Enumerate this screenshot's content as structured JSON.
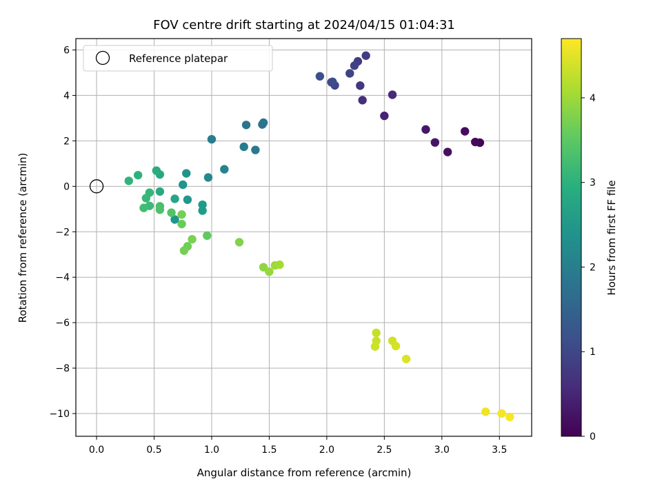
{
  "chart_data": {
    "type": "scatter",
    "title": "FOV centre drift starting at 2024/04/15 01:04:31",
    "xlabel": "Angular distance from reference (arcmin)",
    "ylabel": "Rotation from reference (arcmin)",
    "xlim": [
      -0.18,
      3.78
    ],
    "ylim": [
      -11.0,
      6.5
    ],
    "xticks": [
      0.0,
      0.5,
      1.0,
      1.5,
      2.0,
      2.5,
      3.0,
      3.5
    ],
    "xtick_labels": [
      "0.0",
      "0.5",
      "1.0",
      "1.5",
      "2.0",
      "2.5",
      "3.0",
      "3.5"
    ],
    "yticks": [
      -10,
      -8,
      -6,
      -4,
      -2,
      0,
      2,
      4,
      6
    ],
    "ytick_labels": [
      "−10",
      "−8",
      "−6",
      "−4",
      "−2",
      "0",
      "2",
      "4",
      "6"
    ],
    "grid": true,
    "legend": {
      "placement": "top-left",
      "entries": [
        "Reference platepar"
      ]
    },
    "reference_point": {
      "x": 0.0,
      "y": 0.0
    },
    "colorbar": {
      "label": "Hours from first FF file",
      "colormap": "viridis",
      "range": [
        0,
        4.7
      ],
      "ticks": [
        0,
        1,
        2,
        3,
        4
      ],
      "tick_labels": [
        "0",
        "1",
        "2",
        "3",
        "4"
      ]
    },
    "points": [
      {
        "x": 3.33,
        "y": 1.92,
        "c": 0.05
      },
      {
        "x": 3.29,
        "y": 1.95,
        "c": 0.1
      },
      {
        "x": 3.2,
        "y": 2.42,
        "c": 0.15
      },
      {
        "x": 3.05,
        "y": 1.51,
        "c": 0.2
      },
      {
        "x": 2.94,
        "y": 1.93,
        "c": 0.25
      },
      {
        "x": 2.86,
        "y": 2.5,
        "c": 0.3
      },
      {
        "x": 2.5,
        "y": 3.1,
        "c": 0.45
      },
      {
        "x": 2.57,
        "y": 4.03,
        "c": 0.55
      },
      {
        "x": 2.31,
        "y": 3.79,
        "c": 0.65
      },
      {
        "x": 2.29,
        "y": 4.43,
        "c": 0.75
      },
      {
        "x": 2.34,
        "y": 5.75,
        "c": 0.8
      },
      {
        "x": 2.27,
        "y": 5.5,
        "c": 0.85
      },
      {
        "x": 2.24,
        "y": 5.31,
        "c": 0.9
      },
      {
        "x": 2.2,
        "y": 4.97,
        "c": 0.95
      },
      {
        "x": 2.07,
        "y": 4.44,
        "c": 1.0
      },
      {
        "x": 2.05,
        "y": 4.6,
        "c": 1.05
      },
      {
        "x": 2.04,
        "y": 4.58,
        "c": 1.1
      },
      {
        "x": 1.94,
        "y": 4.84,
        "c": 1.15
      },
      {
        "x": 1.45,
        "y": 2.8,
        "c": 1.75
      },
      {
        "x": 1.44,
        "y": 2.72,
        "c": 1.8
      },
      {
        "x": 1.3,
        "y": 2.7,
        "c": 1.85
      },
      {
        "x": 1.38,
        "y": 1.6,
        "c": 1.9
      },
      {
        "x": 1.28,
        "y": 1.74,
        "c": 1.95
      },
      {
        "x": 1.0,
        "y": 2.07,
        "c": 2.0
      },
      {
        "x": 1.11,
        "y": 0.75,
        "c": 2.1
      },
      {
        "x": 0.97,
        "y": 0.39,
        "c": 2.2
      },
      {
        "x": 0.78,
        "y": 0.57,
        "c": 2.4
      },
      {
        "x": 0.75,
        "y": 0.07,
        "c": 2.45
      },
      {
        "x": 0.79,
        "y": -0.59,
        "c": 2.5
      },
      {
        "x": 0.92,
        "y": -0.81,
        "c": 2.55
      },
      {
        "x": 0.92,
        "y": -1.07,
        "c": 2.6
      },
      {
        "x": 0.68,
        "y": -1.46,
        "c": 2.45
      },
      {
        "x": 0.68,
        "y": -0.55,
        "c": 2.75
      },
      {
        "x": 0.55,
        "y": 0.52,
        "c": 2.8
      },
      {
        "x": 0.55,
        "y": -0.23,
        "c": 2.85
      },
      {
        "x": 0.52,
        "y": 0.69,
        "c": 2.9
      },
      {
        "x": 0.36,
        "y": 0.49,
        "c": 3.0
      },
      {
        "x": 0.28,
        "y": 0.24,
        "c": 3.05
      },
      {
        "x": 0.46,
        "y": -0.28,
        "c": 3.1
      },
      {
        "x": 0.43,
        "y": -0.52,
        "c": 3.15
      },
      {
        "x": 0.46,
        "y": -0.86,
        "c": 3.2
      },
      {
        "x": 0.41,
        "y": -0.95,
        "c": 3.25
      },
      {
        "x": 0.55,
        "y": -0.88,
        "c": 3.3
      },
      {
        "x": 0.55,
        "y": -1.03,
        "c": 3.35
      },
      {
        "x": 0.65,
        "y": -1.16,
        "c": 3.4
      },
      {
        "x": 0.74,
        "y": -1.66,
        "c": 3.6
      },
      {
        "x": 0.74,
        "y": -1.24,
        "c": 3.7
      },
      {
        "x": 0.96,
        "y": -2.17,
        "c": 3.55
      },
      {
        "x": 0.83,
        "y": -2.33,
        "c": 3.75
      },
      {
        "x": 0.79,
        "y": -2.64,
        "c": 3.65
      },
      {
        "x": 0.76,
        "y": -2.83,
        "c": 3.7
      },
      {
        "x": 1.24,
        "y": -2.46,
        "c": 3.8
      },
      {
        "x": 1.45,
        "y": -3.56,
        "c": 3.9
      },
      {
        "x": 1.5,
        "y": -3.76,
        "c": 3.95
      },
      {
        "x": 1.55,
        "y": -3.48,
        "c": 4.0
      },
      {
        "x": 1.59,
        "y": -3.45,
        "c": 4.05
      },
      {
        "x": 2.43,
        "y": -6.45,
        "c": 4.3
      },
      {
        "x": 2.43,
        "y": -6.8,
        "c": 4.32
      },
      {
        "x": 2.42,
        "y": -7.05,
        "c": 4.35
      },
      {
        "x": 2.57,
        "y": -6.8,
        "c": 4.38
      },
      {
        "x": 2.6,
        "y": -7.03,
        "c": 4.4
      },
      {
        "x": 2.69,
        "y": -7.6,
        "c": 4.45
      },
      {
        "x": 3.38,
        "y": -9.92,
        "c": 4.6
      },
      {
        "x": 3.52,
        "y": -10.0,
        "c": 4.62
      },
      {
        "x": 3.59,
        "y": -10.15,
        "c": 4.65
      }
    ]
  }
}
